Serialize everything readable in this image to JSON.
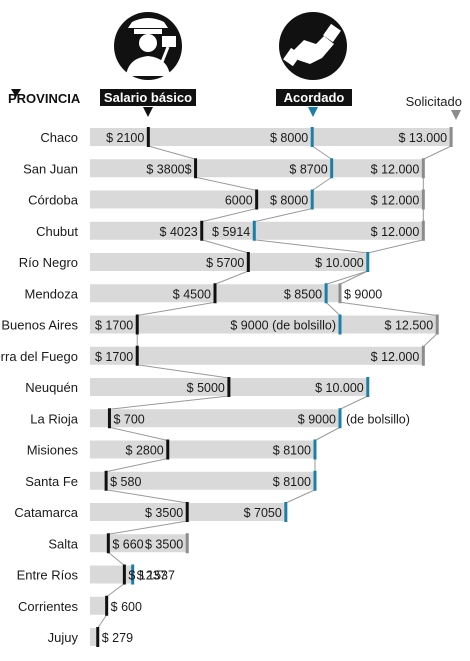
{
  "header": {
    "province_label": "PROVINCIA",
    "salario_label": "Salario básico",
    "acordado_label": "Acordado",
    "solicitado_label": "Solicitado",
    "police_icon": "police-officer-icon",
    "handshake_icon": "handshake-icon"
  },
  "colors": {
    "track": "#d9d9d9",
    "salario_marker": "#111111",
    "acordado_marker": "#1b7fa8",
    "solicitado_marker": "#8c8c8c",
    "connector": "#9a9a9a",
    "badge": "#111111"
  },
  "chart_data": {
    "type": "bar",
    "xlim": [
      0,
      13500
    ],
    "categories": [
      "Chaco",
      "San Juan",
      "Córdoba",
      "Chubut",
      "Río Negro",
      "Mendoza",
      "Buenos Aires",
      "Tierra del Fuego",
      "Neuquén",
      "La Rioja",
      "Misiones",
      "Santa Fe",
      "Catamarca",
      "Salta",
      "Entre Ríos",
      "Corrientes",
      "Jujuy"
    ],
    "rows": [
      {
        "province": "Chaco",
        "salario": 2100,
        "salario_label": "$ 2100",
        "acordado": 8000,
        "acordado_label": "$ 8000",
        "solicitado": 13000,
        "solicitado_label": "$ 13.000"
      },
      {
        "province": "San Juan",
        "salario": 3800,
        "salario_label": "$ 3800$",
        "acordado": 8700,
        "acordado_label": "$ 8700",
        "solicitado": 12000,
        "solicitado_label": "$ 12.000"
      },
      {
        "province": "Córdoba",
        "salario": 6000,
        "salario_label": "6000",
        "acordado": 8000,
        "acordado_label": "$ 8000",
        "solicitado": 12000,
        "solicitado_label": "$ 12.000"
      },
      {
        "province": "Chubut",
        "salario": 4023,
        "salario_label": "$ 4023",
        "acordado": 5914,
        "acordado_label": "$ 5914",
        "solicitado": 12000,
        "solicitado_label": "$ 12.000"
      },
      {
        "province": "Río Negro",
        "salario": 5700,
        "salario_label": "$ 5700",
        "acordado": 10000,
        "acordado_label": "$ 10.000",
        "solicitado": 10000,
        "solicitado_label": ""
      },
      {
        "province": "Mendoza",
        "salario": 4500,
        "salario_label": "$ 4500",
        "acordado": 8500,
        "acordado_label": "$ 8500",
        "solicitado": 9000,
        "solicitado_label": "$ 9000"
      },
      {
        "province": "Buenos Aires",
        "salario": 1700,
        "salario_label": "$ 1700",
        "acordado": 9000,
        "acordado_label": "$ 9000 (de bolsillo)",
        "solicitado": 12500,
        "solicitado_label": "$ 12.500"
      },
      {
        "province": "Tierra del Fuego",
        "salario": 1700,
        "salario_label": "$ 1700",
        "acordado": null,
        "acordado_label": "",
        "solicitado": 12000,
        "solicitado_label": "$ 12.000"
      },
      {
        "province": "Neuquén",
        "salario": 5000,
        "salario_label": "$ 5000",
        "acordado": 10000,
        "acordado_label": "$ 10.000",
        "solicitado": null,
        "solicitado_label": ""
      },
      {
        "province": "La Rioja",
        "salario": 700,
        "salario_label": "$ 700",
        "acordado": 9000,
        "acordado_label": "$ 9000",
        "acordado_note": "(de bolsillo)",
        "solicitado": null,
        "solicitado_label": ""
      },
      {
        "province": "Misiones",
        "salario": 2800,
        "salario_label": "$ 2800",
        "acordado": 8100,
        "acordado_label": "$ 8100",
        "solicitado": null,
        "solicitado_label": ""
      },
      {
        "province": "Santa Fe",
        "salario": 580,
        "salario_label": "$ 580",
        "acordado": 8100,
        "acordado_label": "$ 8100",
        "solicitado": null,
        "solicitado_label": ""
      },
      {
        "province": "Catamarca",
        "salario": 3500,
        "salario_label": "$ 3500",
        "acordado": 7050,
        "acordado_label": "$ 7050",
        "solicitado": null,
        "solicitado_label": ""
      },
      {
        "province": "Salta",
        "salario": 660,
        "salario_label": "$ 660",
        "acordado": null,
        "acordado_label": "",
        "solicitado": 3500,
        "solicitado_label": "$ 3500"
      },
      {
        "province": "Entre Ríos",
        "salario": 1237,
        "salario_label": "$ 1237",
        "acordado": 1537,
        "acordado_label": "$ 1537",
        "solicitado": null,
        "solicitado_label": ""
      },
      {
        "province": "Corrientes",
        "salario": 600,
        "salario_label": "$ 600",
        "acordado": null,
        "acordado_label": "",
        "solicitado": null,
        "solicitado_label": ""
      },
      {
        "province": "Jujuy",
        "salario": 279,
        "salario_label": "$ 279",
        "acordado": null,
        "acordado_label": "",
        "solicitado": null,
        "solicitado_label": ""
      }
    ]
  }
}
